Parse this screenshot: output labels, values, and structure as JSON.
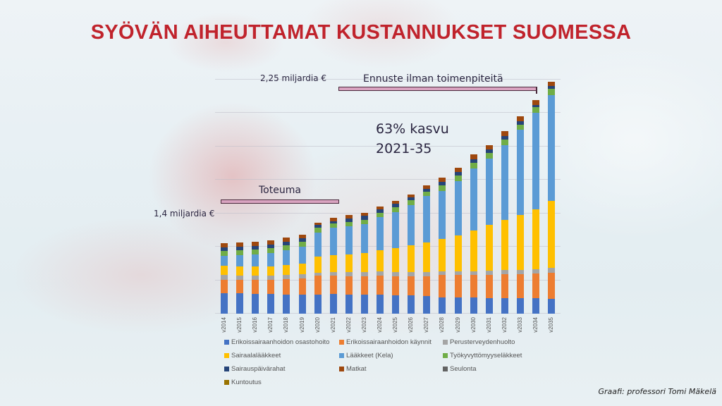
{
  "slide": {
    "title": "SYÖVÄN AIHEUTTAMAT KUSTANNUKSET SUOMESSA",
    "credit": "Graafi: professori Tomi Mäkelä",
    "annotations": {
      "top_value": "2,25 miljardia €",
      "start_value": "1,4 miljardia €",
      "forecast_label": "Ennuste ilman toimenpiteitä",
      "actual_label": "Toteuma",
      "growth_line1": "63% kasvu",
      "growth_line2": "2021-35"
    }
  },
  "chart_data": {
    "type": "bar",
    "stacked": true,
    "title": "SYÖVÄN AIHEUTTAMAT KUSTANNUKSET SUOMESSA",
    "xlabel": "",
    "ylabel": "",
    "value_unit_note": "relative stacked heights read from pixels (no y tick labels shown)",
    "ylim": [
      0,
      350
    ],
    "grid": true,
    "gridlines": [
      0,
      49,
      98,
      147,
      196,
      245,
      294,
      343
    ],
    "legend_position": "bottom",
    "categories": [
      "v2014",
      "v2015",
      "v2016",
      "v2017",
      "v2018",
      "v2019",
      "v2020",
      "v2021",
      "v2022",
      "v2023",
      "v2024",
      "v2025",
      "v2026",
      "v2027",
      "v2028",
      "v2029",
      "v2030",
      "v2031",
      "v2032",
      "v2033",
      "v2034",
      "v2035"
    ],
    "series": [
      {
        "name": "Erikoissairaanhoidon osastohoito",
        "color": "#4472c4",
        "values": [
          30,
          30,
          29,
          29,
          28,
          28,
          28,
          29,
          28,
          28,
          28,
          27,
          27,
          26,
          24,
          24,
          24,
          23,
          23,
          23,
          23,
          22
        ]
      },
      {
        "name": "Erikoissairaanhoidon käynnit",
        "color": "#ed7d31",
        "values": [
          20,
          20,
          21,
          21,
          23,
          24,
          28,
          27,
          27,
          27,
          28,
          28,
          28,
          29,
          33,
          33,
          33,
          34,
          35,
          35,
          36,
          38
        ]
      },
      {
        "name": "Perusterveydenhuolto",
        "color": "#a5a5a5",
        "values": [
          7,
          6,
          6,
          6,
          6,
          6,
          4,
          5,
          6,
          6,
          6,
          6,
          6,
          6,
          5,
          5,
          5,
          6,
          6,
          6,
          6,
          7
        ]
      },
      {
        "name": "Sairaalalääkkeet",
        "color": "#ffc000",
        "values": [
          13,
          13,
          13,
          13,
          14,
          15,
          24,
          25,
          26,
          28,
          31,
          35,
          39,
          43,
          47,
          53,
          60,
          67,
          73,
          80,
          88,
          98
        ]
      },
      {
        "name": "Lääkkeet (Kela)",
        "color": "#5b9bd5",
        "values": [
          15,
          17,
          18,
          20,
          22,
          25,
          35,
          40,
          41,
          42,
          48,
          53,
          59,
          68,
          71,
          79,
          91,
          97,
          110,
          125,
          141,
          155
        ]
      },
      {
        "name": "Työkyvyttömyyseläkkeet",
        "color": "#70ad47",
        "values": [
          7,
          7,
          7,
          7,
          7,
          7,
          7,
          6,
          6,
          6,
          7,
          7,
          7,
          7,
          8,
          8,
          8,
          8,
          8,
          8,
          8,
          9
        ]
      },
      {
        "name": "Sairauspäivärahat",
        "color": "#264478",
        "values": [
          5,
          5,
          5,
          5,
          5,
          5,
          4,
          3,
          5,
          6,
          5,
          5,
          4,
          4,
          5,
          5,
          5,
          5,
          5,
          5,
          4,
          4
        ]
      },
      {
        "name": "Matkat",
        "color": "#9e480e",
        "values": [
          6,
          6,
          6,
          6,
          6,
          6,
          3,
          5,
          6,
          5,
          4,
          4,
          4,
          5,
          6,
          7,
          7,
          7,
          7,
          7,
          7,
          7
        ]
      },
      {
        "name": "Seulonta",
        "color": "#636363",
        "values": [
          0,
          0,
          0,
          0,
          0,
          0,
          0,
          0,
          0,
          0,
          0,
          0,
          0,
          0,
          0,
          0,
          0,
          0,
          0,
          0,
          0,
          0
        ]
      },
      {
        "name": "Kuntoutus",
        "color": "#997300",
        "values": [
          0,
          0,
          0,
          0,
          0,
          0,
          0,
          0,
          0,
          0,
          0,
          0,
          0,
          0,
          0,
          0,
          0,
          0,
          0,
          0,
          0,
          0
        ]
      }
    ],
    "annotations": [
      {
        "text": "2,25 miljardia €",
        "near": "v2035 top"
      },
      {
        "text": "1,4 miljardia €",
        "near": "v2021 top"
      },
      {
        "text": "Toteuma",
        "span": [
          "v2014",
          "v2021"
        ]
      },
      {
        "text": "Ennuste ilman toimenpiteitä",
        "span": [
          "v2022",
          "v2034"
        ]
      },
      {
        "text": "63% kasvu 2021-35"
      }
    ]
  }
}
